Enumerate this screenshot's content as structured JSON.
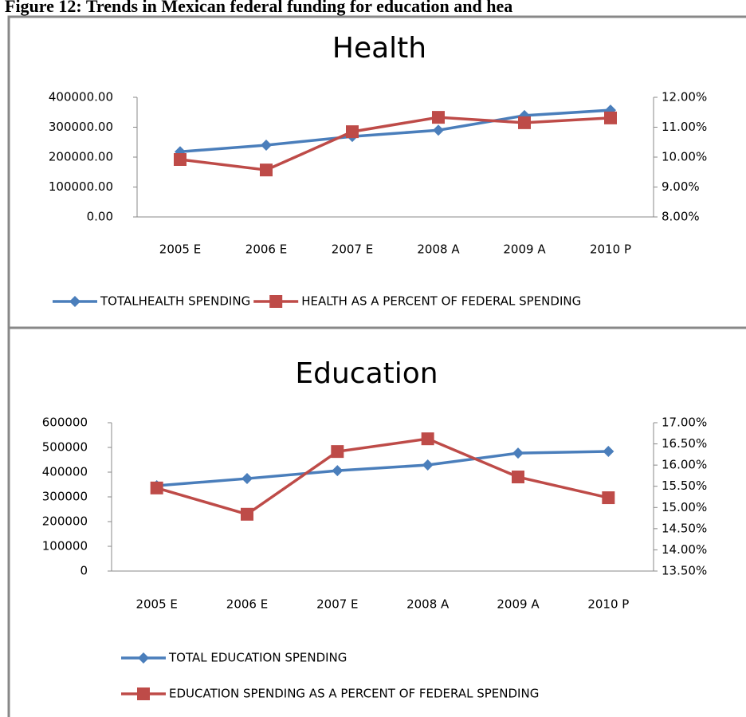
{
  "caption": "Figure 12: Trends in Mexican federal funding for education and hea",
  "chart_data": [
    {
      "type": "line",
      "title": "Health",
      "categories": [
        "2005 E",
        "2006 E",
        "2007 E",
        "2008 A",
        "2009 A",
        "2010 P"
      ],
      "series": [
        {
          "name": "TOTALHEALTH SPENDING",
          "color": "#4a7ebb",
          "marker": "diamond",
          "values": [
            218000,
            240000,
            269000,
            290000,
            339000,
            357000
          ]
        },
        {
          "name": "HEALTH AS A PERCENT OF FEDERAL SPENDING",
          "color": "#be4b48",
          "marker": "square",
          "axis": "y2",
          "values": [
            9.92,
            9.57,
            10.85,
            11.33,
            11.15,
            11.31
          ]
        }
      ],
      "ylim": [
        0,
        400000
      ],
      "yticks": [
        {
          "value": 0,
          "label": "0.00"
        },
        {
          "value": 100000,
          "label": "100000.00"
        },
        {
          "value": 200000,
          "label": "200000.00"
        },
        {
          "value": 300000,
          "label": "300000.00"
        },
        {
          "value": 400000,
          "label": "400000.00"
        }
      ],
      "y2lim": [
        8,
        12
      ],
      "y2ticks": [
        {
          "value": 8,
          "label": "8.00%"
        },
        {
          "value": 9,
          "label": "9.00%"
        },
        {
          "value": 10,
          "label": "10.00%"
        },
        {
          "value": 11,
          "label": "11.00%"
        },
        {
          "value": 12,
          "label": "12.00%"
        }
      ],
      "legend": "bottom",
      "grid": false
    },
    {
      "type": "line",
      "title": "Education",
      "categories": [
        "2005 E",
        "2006 E",
        "2007 E",
        "2008 A",
        "2009 A",
        "2010 P"
      ],
      "series": [
        {
          "name": "TOTAL EDUCATION SPENDING",
          "color": "#4a7ebb",
          "marker": "diamond",
          "values": [
            345000,
            374000,
            406000,
            429000,
            477000,
            484000
          ]
        },
        {
          "name": "EDUCATION SPENDING AS A PERCENT OF FEDERAL SPENDING",
          "color": "#be4b48",
          "marker": "square",
          "axis": "y2",
          "values": [
            15.46,
            14.84,
            16.32,
            16.62,
            15.72,
            15.23
          ]
        }
      ],
      "ylim": [
        0,
        600000
      ],
      "yticks": [
        0,
        100000,
        200000,
        300000,
        400000,
        500000,
        600000
      ],
      "y2lim": [
        13.5,
        17
      ],
      "y2ticks": [
        {
          "value": 13.5,
          "label": "13.50%"
        },
        {
          "value": 14,
          "label": "14.00%"
        },
        {
          "value": 14.5,
          "label": "14.50%"
        },
        {
          "value": 15,
          "label": "15.00%"
        },
        {
          "value": 15.5,
          "label": "15.50%"
        },
        {
          "value": 16,
          "label": "16.00%"
        },
        {
          "value": 16.5,
          "label": "16.50%"
        },
        {
          "value": 17,
          "label": "17.00%"
        }
      ],
      "legend": "bottom",
      "grid": false
    }
  ]
}
